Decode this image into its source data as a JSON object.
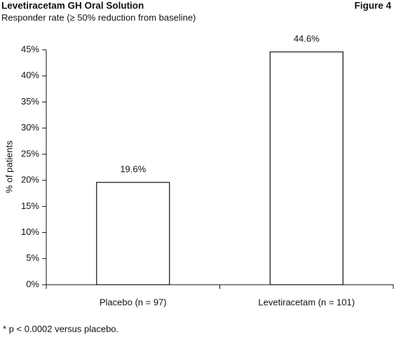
{
  "chart_data": {
    "type": "bar",
    "title": "Levetiracetam GH Oral Solution",
    "subtitle": "Responder rate (≥ 50% reduction from baseline)",
    "figure_label": "Figure 4",
    "y_label": "% of patients",
    "footnote": "* p < 0.0002 versus placebo.",
    "categories": [
      "Placebo (n = 97)",
      "Levetiracetam (n = 101)"
    ],
    "values": [
      19.6,
      44.6
    ],
    "value_labels": [
      "19.6%",
      "44.6%"
    ],
    "color": "#ffffff",
    "ylim": [
      0,
      45
    ],
    "yticks": [
      {
        "value": 0,
        "label": "0%"
      },
      {
        "value": 5,
        "label": "5%"
      },
      {
        "value": 10,
        "label": "10%"
      },
      {
        "value": 15,
        "label": "15%"
      },
      {
        "value": 20,
        "label": "20%"
      },
      {
        "value": 25,
        "label": "25%"
      },
      {
        "value": 30,
        "label": "30%"
      },
      {
        "value": 35,
        "label": "35%"
      },
      {
        "value": 40,
        "label": "40%"
      },
      {
        "value": 45,
        "label": "45%"
      }
    ],
    "grid": false
  }
}
